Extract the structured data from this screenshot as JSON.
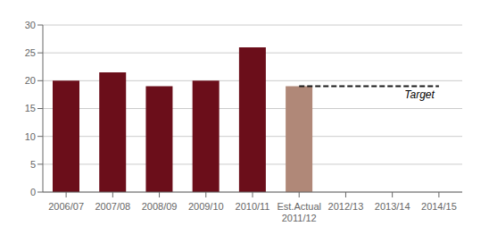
{
  "chart_data": {
    "type": "bar",
    "categories": [
      "2006/07",
      "2007/08",
      "2008/09",
      "2009/10",
      "2010/11",
      "Est.Actual\n2011/12",
      "2012/13",
      "2013/14",
      "2014/15"
    ],
    "values": [
      20,
      21.5,
      19,
      20,
      26,
      19,
      null,
      null,
      null
    ],
    "colors": [
      "#6B0E1A",
      "#6B0E1A",
      "#6B0E1A",
      "#6B0E1A",
      "#6B0E1A",
      "#B08878",
      null,
      null,
      null
    ],
    "target": {
      "value": 19,
      "label": "Target"
    },
    "ylim": [
      0,
      30
    ],
    "yticks": [
      0,
      5,
      10,
      15,
      20,
      25,
      30
    ],
    "grid": true
  }
}
